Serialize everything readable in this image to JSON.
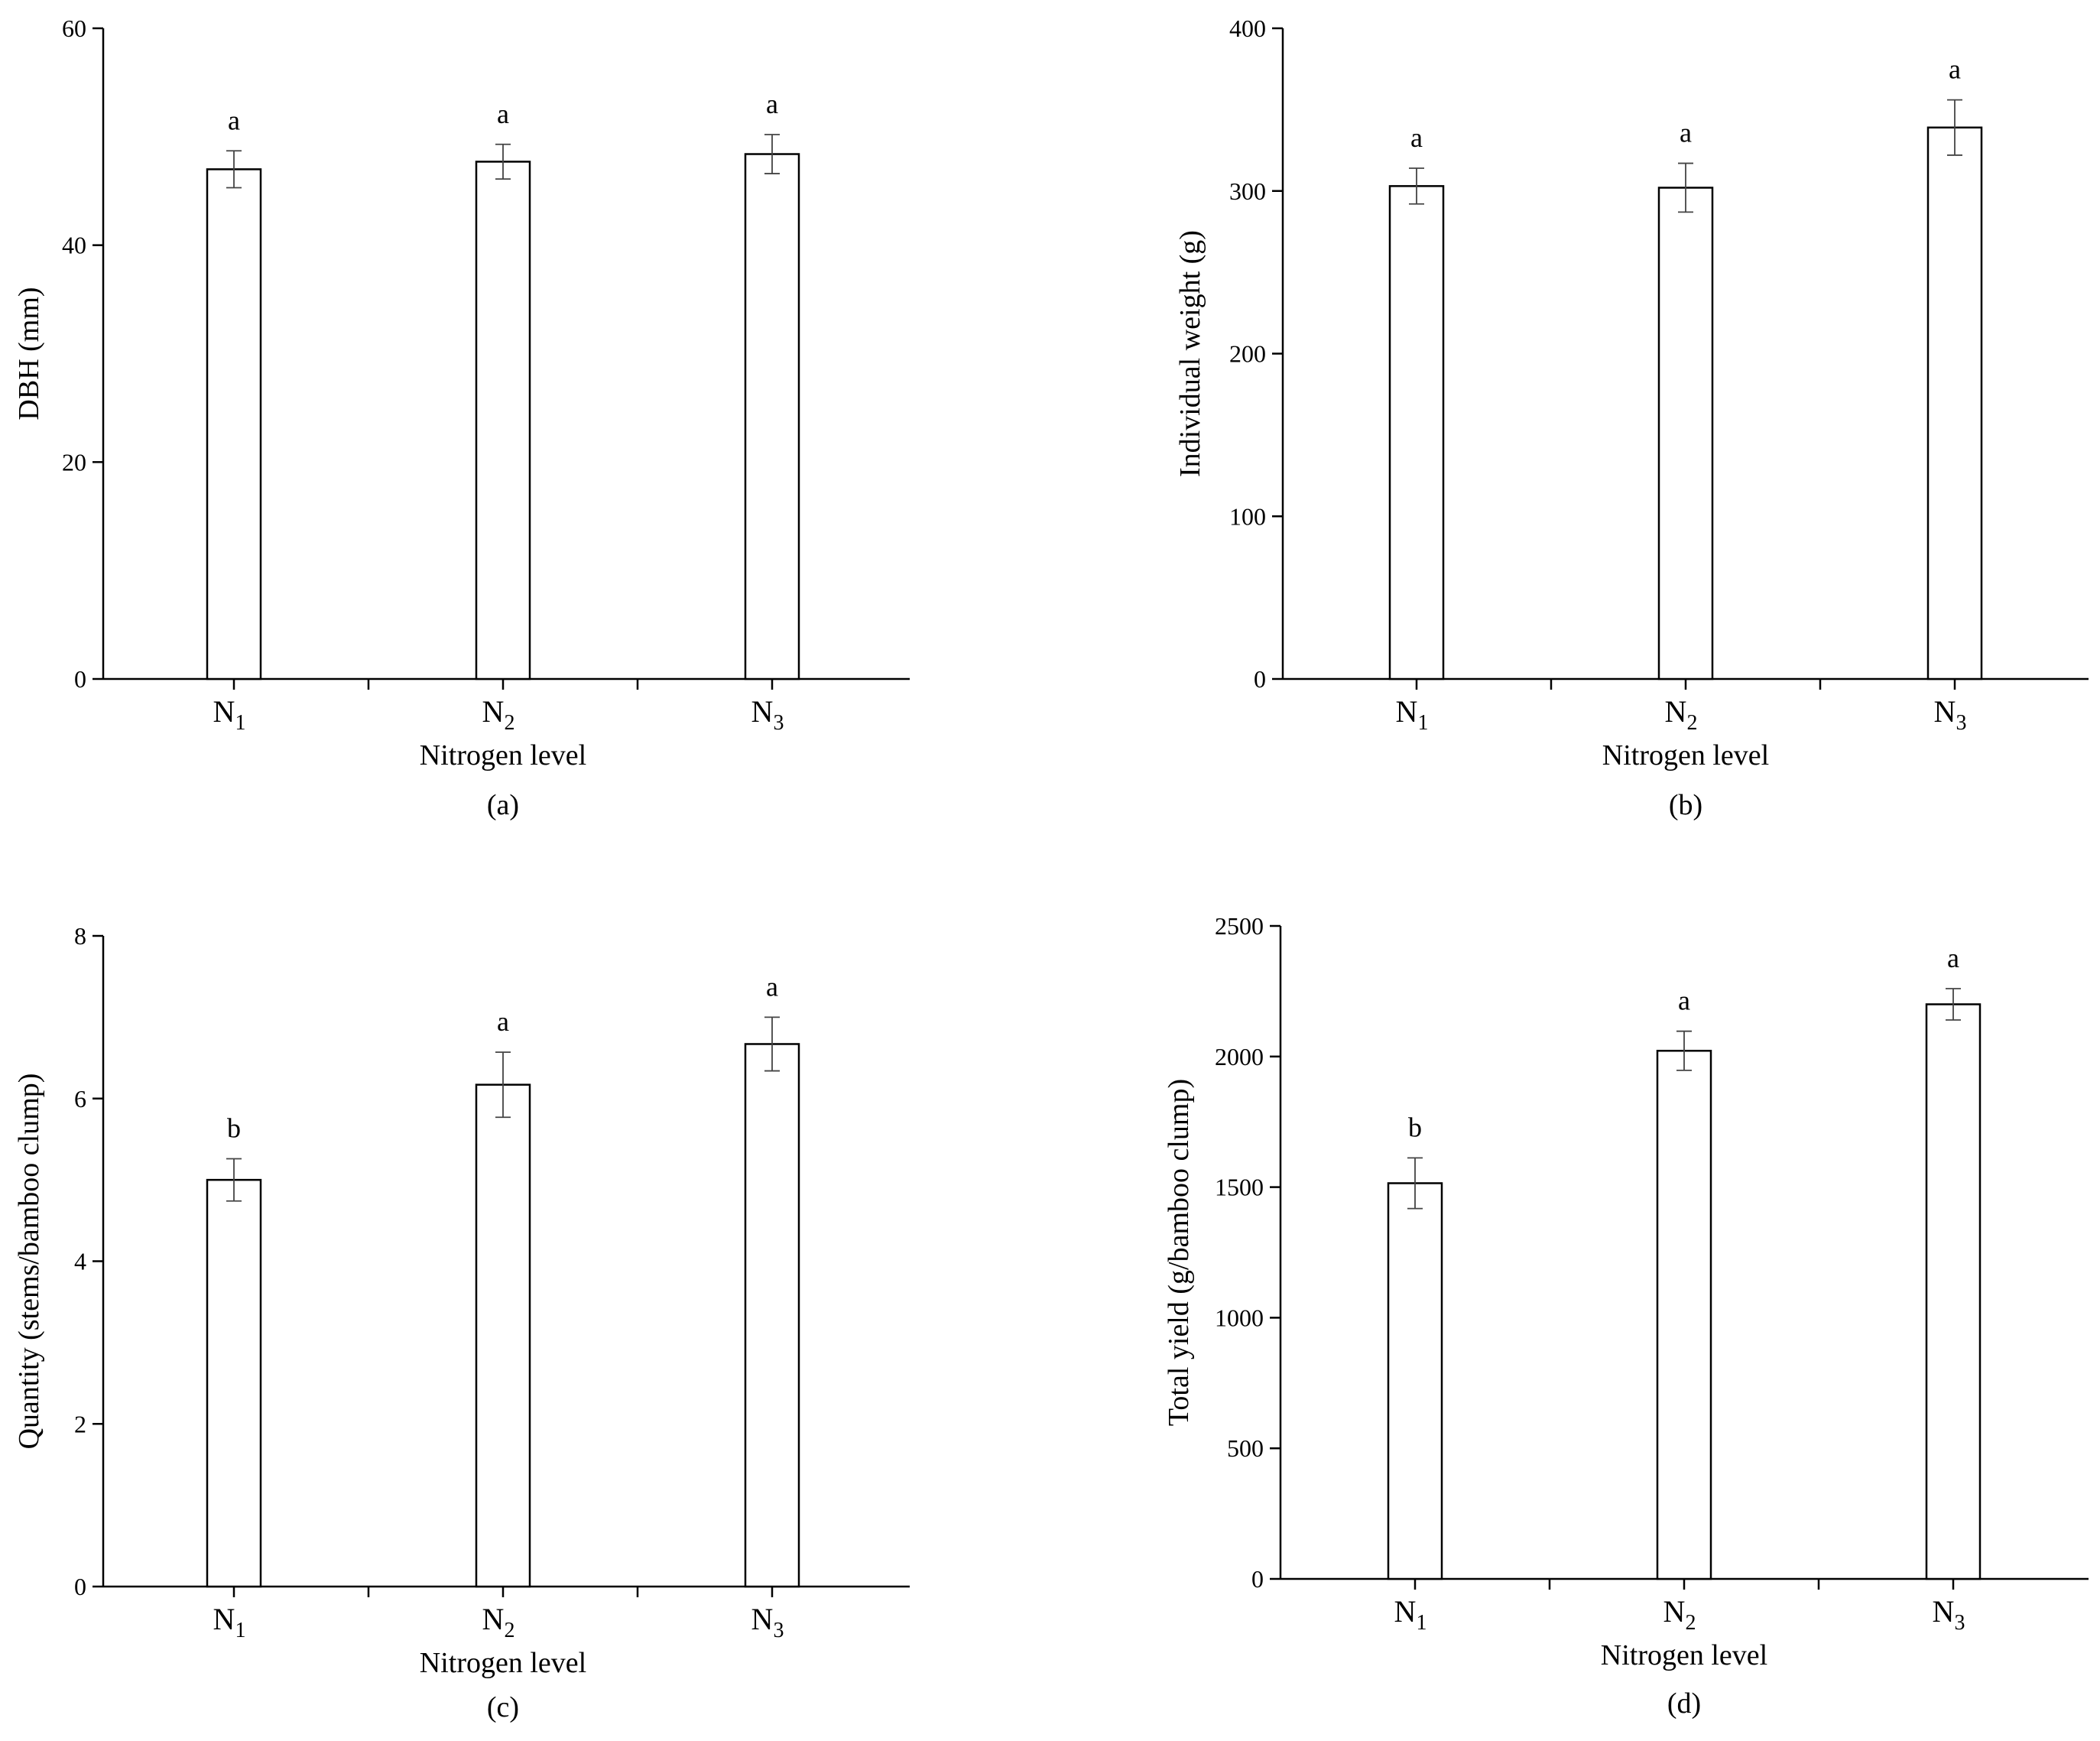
{
  "chart_data": [
    {
      "type": "bar",
      "panel": "(a)",
      "categories": [
        {
          "base": "N",
          "sub": "1"
        },
        {
          "base": "N",
          "sub": "2"
        },
        {
          "base": "N",
          "sub": "3"
        }
      ],
      "values": [
        47.0,
        47.7,
        48.4
      ],
      "errors": [
        1.7,
        1.6,
        1.8
      ],
      "significance": [
        "a",
        "a",
        "a"
      ],
      "xlabel": "Nitrogen level",
      "ylabel": "DBH (mm)",
      "ylim": [
        0,
        60
      ],
      "yticks": [
        0,
        20,
        40,
        60
      ],
      "caption": "(a)"
    },
    {
      "type": "bar",
      "panel": "(b)",
      "categories": [
        {
          "base": "N",
          "sub": "1"
        },
        {
          "base": "N",
          "sub": "2"
        },
        {
          "base": "N",
          "sub": "3"
        }
      ],
      "values": [
        303,
        302,
        339
      ],
      "errors": [
        11,
        15,
        17
      ],
      "significance": [
        "a",
        "a",
        "a"
      ],
      "xlabel": "Nitrogen level",
      "ylabel": "Individual weight (g)",
      "ylim": [
        0,
        400
      ],
      "yticks": [
        0,
        100,
        200,
        300,
        400
      ],
      "caption": "(b)"
    },
    {
      "type": "bar",
      "panel": "(c)",
      "categories": [
        {
          "base": "N",
          "sub": "1"
        },
        {
          "base": "N",
          "sub": "2"
        },
        {
          "base": "N",
          "sub": "3"
        }
      ],
      "values": [
        5.0,
        6.17,
        6.67
      ],
      "errors": [
        0.26,
        0.4,
        0.33
      ],
      "significance": [
        "b",
        "a",
        "a"
      ],
      "xlabel": "Nitrogen level",
      "ylabel": "Quantity (stems/bamboo clump)",
      "ylim": [
        0,
        8
      ],
      "yticks": [
        0,
        2,
        4,
        6,
        8
      ],
      "caption": "(c)"
    },
    {
      "type": "bar",
      "panel": "(d)",
      "categories": [
        {
          "base": "N",
          "sub": "1"
        },
        {
          "base": "N",
          "sub": "2"
        },
        {
          "base": "N",
          "sub": "3"
        }
      ],
      "values": [
        1515,
        2022,
        2200
      ],
      "errors": [
        97,
        75,
        60
      ],
      "significance": [
        "b",
        "a",
        "a"
      ],
      "xlabel": "Nitrogen level",
      "ylabel": "Total yield (g/bamboo clump)",
      "ylim": [
        0,
        2500
      ],
      "yticks": [
        0,
        500,
        1000,
        1500,
        2000,
        2500
      ],
      "caption": "(d)"
    }
  ]
}
